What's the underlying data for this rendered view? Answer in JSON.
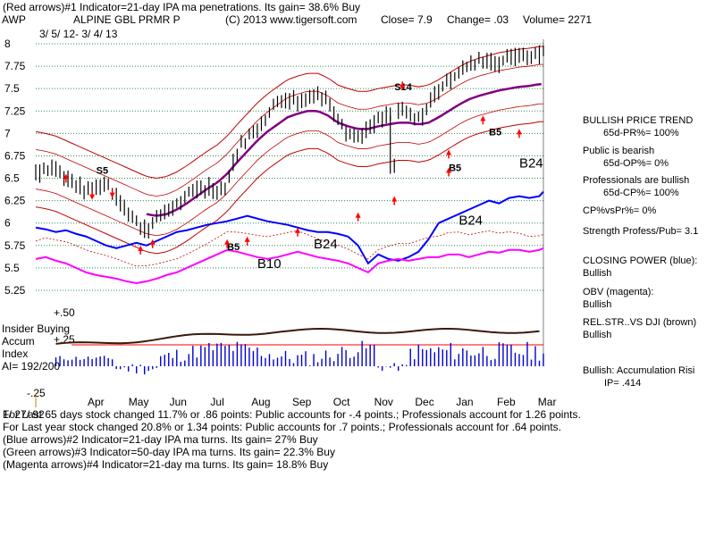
{
  "header": {
    "line1": "(Red arrows)#1 Indicator=21-day IPA ma penetrations. Its gain= 38.6% Buy",
    "ticker": "AWP",
    "name": "ALPINE GBL PRMR P",
    "copyright": "(C) 2013 www.tigersoft.com",
    "close": "Close=  7.9",
    "change": "Change= .03",
    "volume": "Volume= 2271",
    "daterange": "3/ 5/ 12- 3/ 4/ 13"
  },
  "chart_data": {
    "type": "line",
    "title": "ALPINE GBL PRMR P",
    "y_ticks": [
      "8",
      "7.75",
      "7.5",
      "7.25",
      "7",
      "6.75",
      "6.5",
      "6.25",
      "6",
      "5.75",
      "5.5",
      "5.25"
    ],
    "ylim": [
      5.1,
      8.05
    ],
    "x_ticks": [
      "Apr",
      "May",
      "Jun",
      "Jul",
      "Aug",
      "Sep",
      "Oct",
      "Nov",
      "Dec",
      "Jan",
      "Feb",
      "Mar"
    ],
    "price_series": {
      "name": "Close",
      "x": [
        0,
        5,
        10,
        15,
        20,
        25,
        30,
        35,
        40,
        45,
        50,
        55,
        60,
        65,
        70,
        75,
        80,
        85,
        90,
        95,
        100,
        105,
        110,
        115,
        120,
        125,
        130,
        135,
        140,
        145,
        150,
        155,
        160,
        165,
        170,
        175,
        180,
        185,
        190,
        195,
        200,
        205,
        210,
        215,
        220,
        225,
        230,
        235,
        240,
        245,
        250,
        252
      ],
      "y": [
        6.55,
        6.62,
        6.6,
        6.5,
        6.42,
        6.35,
        6.4,
        6.45,
        6.3,
        6.15,
        6.0,
        5.92,
        6.05,
        6.15,
        6.2,
        6.3,
        6.38,
        6.4,
        6.35,
        6.45,
        6.8,
        6.95,
        7.05,
        7.2,
        7.35,
        7.4,
        7.35,
        7.4,
        7.45,
        7.35,
        7.2,
        7.0,
        6.95,
        7.05,
        7.15,
        7.2,
        7.25,
        7.2,
        7.15,
        7.3,
        7.5,
        7.6,
        7.7,
        7.75,
        7.8,
        7.82,
        7.8,
        7.85,
        7.88,
        7.85,
        7.9,
        7.9
      ]
    },
    "ma21_series": {
      "name": "Moving average",
      "y": [
        6.6,
        6.58,
        6.55,
        6.5,
        6.45,
        6.4,
        6.35,
        6.3,
        6.25,
        6.2,
        6.15,
        6.1,
        6.08,
        6.1,
        6.15,
        6.22,
        6.3,
        6.38,
        6.45,
        6.55,
        6.68,
        6.8,
        6.92,
        7.02,
        7.1,
        7.18,
        7.22,
        7.25,
        7.25,
        7.2,
        7.12,
        7.08,
        7.05,
        7.05,
        7.08,
        7.1,
        7.12,
        7.12,
        7.1,
        7.12,
        7.18,
        7.25,
        7.32,
        7.38,
        7.42,
        7.45,
        7.48,
        7.5,
        7.52,
        7.53,
        7.55,
        7.55
      ]
    },
    "signals": [
      {
        "label": "S5",
        "x": 30,
        "y": 6.55
      },
      {
        "label": "B5",
        "x": 95,
        "y": 5.7
      },
      {
        "label": "B10",
        "x": 110,
        "y": 5.5
      },
      {
        "label": "B24",
        "x": 138,
        "y": 5.72
      },
      {
        "label": "S14",
        "x": 178,
        "y": 7.48
      },
      {
        "label": "B5",
        "x": 205,
        "y": 6.58
      },
      {
        "label": "B24",
        "x": 210,
        "y": 5.98
      },
      {
        "label": "B5",
        "x": 225,
        "y": 6.98
      },
      {
        "label": "B24",
        "x": 240,
        "y": 6.62
      }
    ],
    "lower_panel": {
      "title": "Insider Buying",
      "label2": "Accum",
      "label3": "Index",
      "label4": "AI= 192/200",
      "y_ticks": [
        "+.50",
        "+.25",
        "-.25"
      ],
      "ylim": [
        -0.25,
        0.5
      ]
    }
  },
  "sidebar": {
    "trend_title": "BULLISH PRICE TREND",
    "pr": "65d-PR%= 100%",
    "public_title": "Public is bearish",
    "op": "65d-OP%= 0%",
    "pros_title": "Professionals are bullish",
    "cp": "65d-CP%= 100%",
    "cpvspr": "CP%vsPr%=  0%",
    "strength": "Strength Profess/Pub= 3.1",
    "closing_title": "CLOSING POWER (blue):",
    "closing_val": "Bullish",
    "obv_title": "OBV (magenta):",
    "obv_val": "Bullish",
    "relstr_title": "REL.STR..VS DJI (brown)",
    "relstr_val": "Bullish",
    "bullish_accum": "Bullish: Accumulation Risi",
    "ip": "IP=  .414"
  },
  "footer": {
    "line1": "For Last 65 days stock changed  11.7% or  .86 points:  Public accounts for -.4 points.;  Professionals account for  1.26 points.",
    "line2": "For Last year stock changed  20.8% or  1.34 points:  Public accounts for  .7 points.;  Professionals account for  .64 points.",
    "line3": "(Blue arrows)#2 Indicator=21-day IPA ma turns. Its gain= 27% Buy",
    "line4": "(Green arrows)#3 Indicator=50-day IPA ma turns. Its gain= 22.3% Buy",
    "line5": "(Magenta arrows)#4 Indicator=21-day ma turns. Its gain= 18.8% Buy",
    "overlap": "1/ 27/ 92"
  },
  "colors": {
    "price": "#000000",
    "ma": "#800080",
    "bands": "#c00000",
    "closing_power": "#0000ff",
    "obv": "#ff00ff",
    "relstr": "#8b4513",
    "accum": "#0000cc",
    "arrow": "#ff0000"
  }
}
